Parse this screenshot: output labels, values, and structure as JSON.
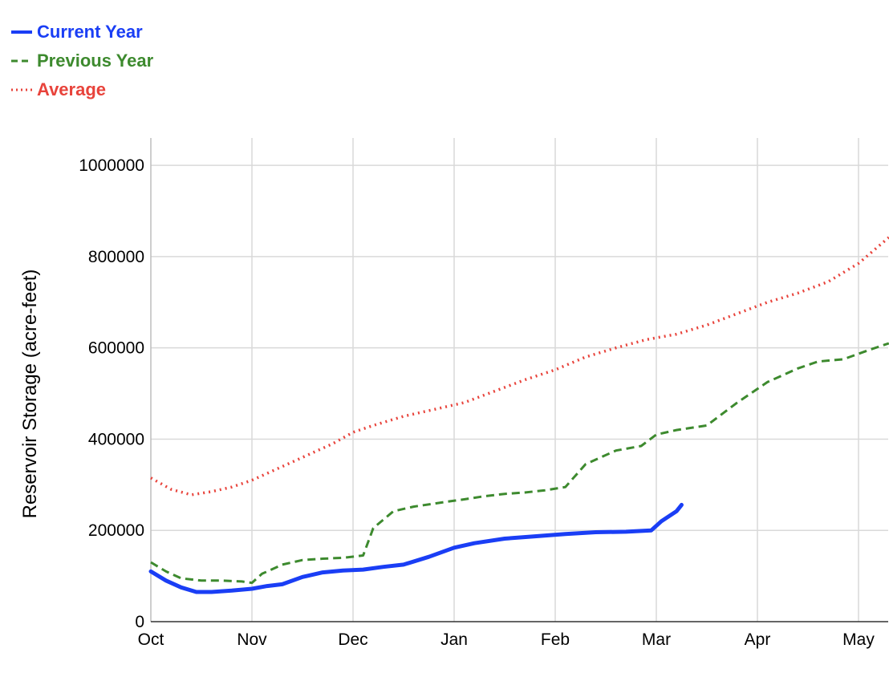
{
  "chart_data": {
    "type": "line",
    "title": "",
    "ylabel": "Reservoir Storage (acre-feet)",
    "xlabel": "",
    "ylim": [
      0,
      1060000
    ],
    "y_ticks": [
      0,
      200000,
      400000,
      600000,
      800000,
      1000000
    ],
    "y_tick_labels": [
      "0",
      "200000",
      "400000",
      "600000",
      "800000",
      "1000000"
    ],
    "x_ticks": [
      "Oct",
      "Nov",
      "Dec",
      "Jan",
      "Feb",
      "Mar",
      "Apr",
      "May"
    ],
    "xlim": [
      0,
      7.3
    ],
    "grid": true,
    "legend_position": "top-left",
    "series": [
      {
        "name": "Current Year",
        "color": "#1a3ef5",
        "style": "solid",
        "x": [
          0,
          0.15,
          0.3,
          0.45,
          0.6,
          0.8,
          1.0,
          1.15,
          1.3,
          1.5,
          1.7,
          1.9,
          2.1,
          2.3,
          2.5,
          2.75,
          3.0,
          3.2,
          3.5,
          3.8,
          4.1,
          4.4,
          4.7,
          4.95,
          5.05,
          5.2,
          5.25
        ],
        "y": [
          110000,
          90000,
          75000,
          65000,
          65000,
          68000,
          72000,
          78000,
          82000,
          98000,
          108000,
          112000,
          114000,
          120000,
          125000,
          142000,
          162000,
          172000,
          182000,
          187000,
          192000,
          196000,
          197000,
          200000,
          220000,
          242000,
          256000
        ]
      },
      {
        "name": "Previous Year",
        "color": "#3d8a2e",
        "style": "dashed",
        "x": [
          0,
          0.15,
          0.3,
          0.5,
          0.7,
          0.9,
          1.0,
          1.1,
          1.3,
          1.5,
          1.7,
          1.9,
          2.1,
          2.2,
          2.4,
          2.6,
          2.9,
          3.1,
          3.3,
          3.5,
          3.7,
          3.9,
          4.1,
          4.3,
          4.6,
          4.85,
          5.0,
          5.2,
          5.5,
          5.8,
          6.1,
          6.4,
          6.6,
          6.85,
          7.1,
          7.3
        ],
        "y": [
          130000,
          110000,
          95000,
          90000,
          90000,
          88000,
          85000,
          105000,
          125000,
          135000,
          138000,
          140000,
          145000,
          205000,
          242000,
          252000,
          262000,
          268000,
          275000,
          280000,
          283000,
          288000,
          295000,
          345000,
          375000,
          385000,
          410000,
          420000,
          430000,
          480000,
          525000,
          555000,
          570000,
          575000,
          595000,
          610000
        ]
      },
      {
        "name": "Average",
        "color": "#e8433b",
        "style": "dotted",
        "x": [
          0,
          0.2,
          0.4,
          0.6,
          0.8,
          1.0,
          1.2,
          1.4,
          1.6,
          1.8,
          2.0,
          2.2,
          2.5,
          2.8,
          3.1,
          3.4,
          3.7,
          4.0,
          4.3,
          4.6,
          4.9,
          5.2,
          5.5,
          5.8,
          6.1,
          6.4,
          6.7,
          7.0,
          7.3
        ],
        "y": [
          315000,
          290000,
          278000,
          285000,
          295000,
          310000,
          330000,
          350000,
          370000,
          390000,
          415000,
          430000,
          450000,
          465000,
          480000,
          505000,
          530000,
          552000,
          580000,
          600000,
          618000,
          630000,
          650000,
          675000,
          700000,
          720000,
          745000,
          785000,
          842000
        ]
      }
    ]
  }
}
